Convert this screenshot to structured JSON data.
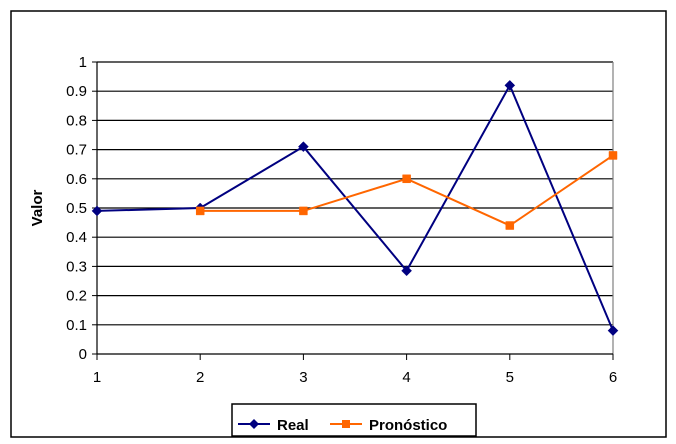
{
  "chart_data": {
    "type": "line",
    "title": "",
    "xlabel": "",
    "ylabel": "Valor",
    "x": [
      1,
      2,
      3,
      4,
      5,
      6
    ],
    "xticks": [
      "1",
      "2",
      "3",
      "4",
      "5",
      "6"
    ],
    "yticks": [
      "0",
      "0.1",
      "0.2",
      "0.3",
      "0.4",
      "0.5",
      "0.6",
      "0.7",
      "0.8",
      "0.9",
      "1"
    ],
    "ylim": [
      0,
      1
    ],
    "grid": true,
    "legend_position": "bottom",
    "series": [
      {
        "name": "Real",
        "color": "#000080",
        "marker": "diamond",
        "x": [
          1,
          2,
          3,
          4,
          5,
          6
        ],
        "values": [
          0.49,
          0.5,
          0.71,
          0.285,
          0.92,
          0.08
        ]
      },
      {
        "name": "Pronóstico",
        "color": "#FF6600",
        "marker": "square",
        "x": [
          2,
          3,
          4,
          5,
          6
        ],
        "values": [
          0.49,
          0.49,
          0.6,
          0.44,
          0.68
        ]
      }
    ]
  }
}
